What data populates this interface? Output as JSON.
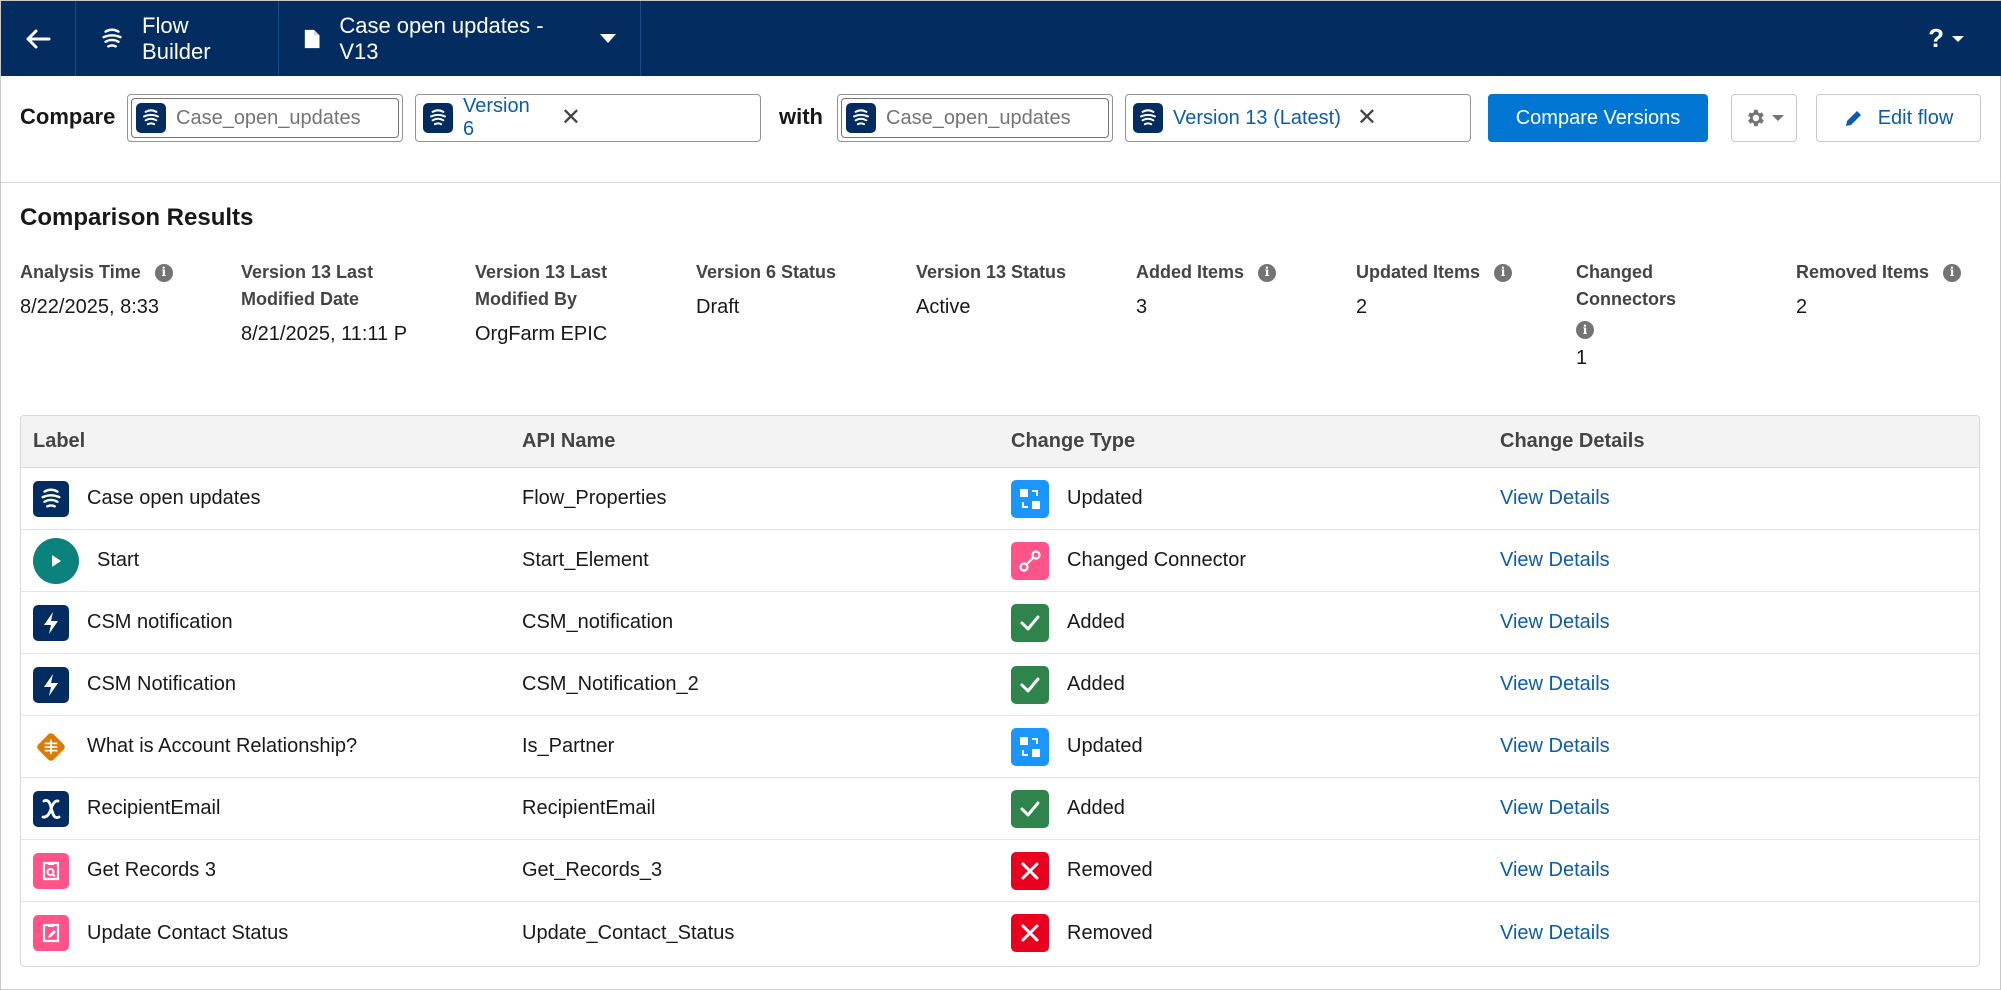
{
  "topbar": {
    "back_icon": "arrow-left-icon",
    "builder_label": "Flow Builder",
    "flow_title": "Case open updates - V13",
    "help_label": "?"
  },
  "compare": {
    "label": "Compare",
    "with_label": "with",
    "left_flow_placeholder": "Case_open_updates",
    "left_version": "Version 6",
    "right_flow_placeholder": "Case_open_updates",
    "right_version": "Version 13 (Latest)",
    "compare_button": "Compare Versions",
    "edit_button": "Edit flow"
  },
  "results": {
    "title": "Comparison Results",
    "stats": [
      {
        "label": "Analysis Time",
        "value": "8/22/2025, 8:33",
        "info": true
      },
      {
        "label": "Version 13 Last Modified Date",
        "value": "8/21/2025, 11:11 P",
        "info": false
      },
      {
        "label": "Version 13 Last Modified By",
        "value": "OrgFarm EPIC",
        "info": false
      },
      {
        "label": "Version 6 Status",
        "value": "Draft",
        "info": false
      },
      {
        "label": "Version 13 Status",
        "value": "Active",
        "info": false
      },
      {
        "label": "Added Items",
        "value": "3",
        "info": true
      },
      {
        "label": "Updated Items",
        "value": "2",
        "info": true
      },
      {
        "label": "Changed Connectors",
        "value": "1",
        "info": true
      },
      {
        "label": "Removed Items",
        "value": "2",
        "info": true
      }
    ]
  },
  "table": {
    "headers": [
      "Label",
      "API Name",
      "Change Type",
      "Change Details"
    ],
    "rows": [
      {
        "label": "Case open updates",
        "api": "Flow_Properties",
        "change": "Updated",
        "details": "View Details",
        "icon": "flow-icon",
        "change_icon": "updated-icon"
      },
      {
        "label": "Start",
        "api": "Start_Element",
        "change": "Changed Connector",
        "details": "View Details",
        "icon": "start-play-icon",
        "change_icon": "connector-icon"
      },
      {
        "label": "CSM notification",
        "api": "CSM_notification",
        "change": "Added",
        "details": "View Details",
        "icon": "action-bolt-icon",
        "change_icon": "check-icon"
      },
      {
        "label": "CSM Notification",
        "api": "CSM_Notification_2",
        "change": "Added",
        "details": "View Details",
        "icon": "action-bolt-icon",
        "change_icon": "check-icon"
      },
      {
        "label": "What is Account Relationship?",
        "api": "Is_Partner",
        "change": "Updated",
        "details": "View Details",
        "icon": "decision-icon",
        "change_icon": "updated-icon"
      },
      {
        "label": "RecipientEmail",
        "api": "RecipientEmail",
        "change": "Added",
        "details": "View Details",
        "icon": "variable-icon",
        "change_icon": "check-icon"
      },
      {
        "label": "Get Records 3",
        "api": "Get_Records_3",
        "change": "Removed",
        "details": "View Details",
        "icon": "get-records-icon",
        "change_icon": "removed-x-icon"
      },
      {
        "label": "Update Contact Status",
        "api": "Update_Contact_Status",
        "change": "Removed",
        "details": "View Details",
        "icon": "update-records-icon",
        "change_icon": "removed-x-icon"
      }
    ]
  },
  "colors": {
    "nav": "#032d60",
    "brand": "#0176d3",
    "link": "#0b5cab",
    "added": "#2e844a",
    "updated": "#1b96ff",
    "connector": "#ff538a",
    "removed": "#ea001e",
    "start": "#0b827c",
    "decision": "#dd7a01"
  }
}
